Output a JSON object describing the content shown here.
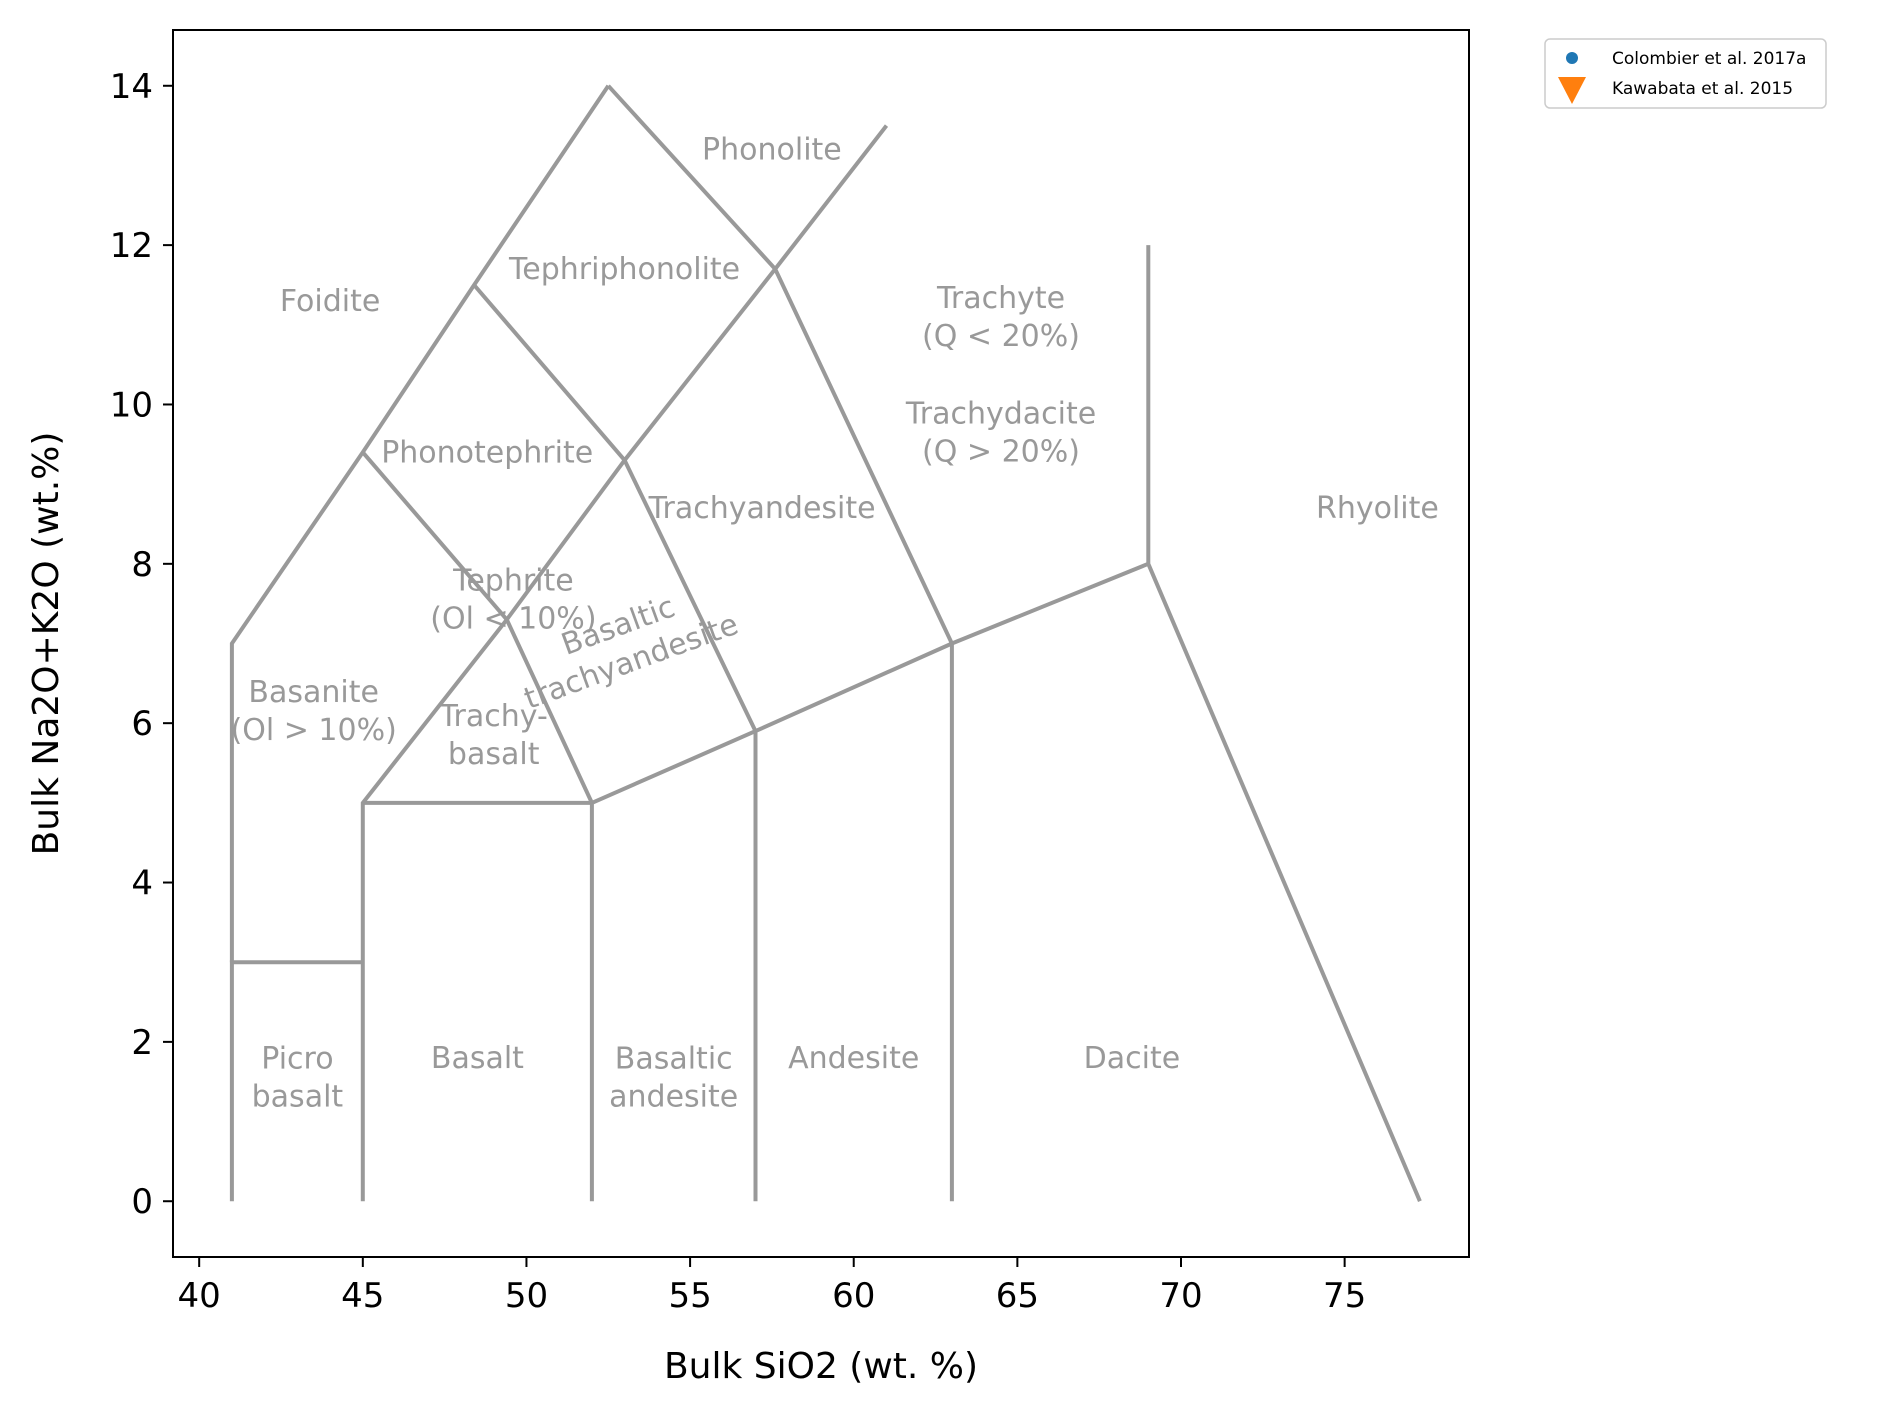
{
  "chart_data": {
    "type": "scatter",
    "title": "",
    "xlabel": "Bulk SiO2 (wt. %)",
    "ylabel": "Bulk Na2O+K2O (wt.%)",
    "xlim": [
      39.2,
      78.8
    ],
    "ylim": [
      -0.7,
      14.7
    ],
    "x_ticks": [
      40,
      45,
      50,
      55,
      60,
      65,
      70,
      75
    ],
    "y_ticks": [
      0,
      2,
      4,
      6,
      8,
      10,
      12,
      14
    ],
    "grid": false,
    "legend_position": "outside-top-right",
    "series": [
      {
        "name": "Colombier et al. 2017a",
        "marker": "circle",
        "color": "#1f77b4",
        "points": []
      },
      {
        "name": "Kawabata et al. 2015",
        "marker": "triangle-down",
        "color": "#ff7f0e",
        "points": []
      }
    ],
    "boundary_color": "#999999",
    "boundaries": [
      [
        [
          41,
          0
        ],
        [
          41,
          3
        ],
        [
          45,
          3
        ]
      ],
      [
        [
          45,
          0
        ],
        [
          45,
          3
        ],
        [
          45,
          5
        ],
        [
          49.4,
          7.3
        ],
        [
          53,
          9.3
        ],
        [
          57.6,
          11.7
        ],
        [
          61,
          13.5
        ]
      ],
      [
        [
          45,
          5
        ],
        [
          52,
          5
        ]
      ],
      [
        [
          52,
          0
        ],
        [
          52,
          5
        ],
        [
          57,
          5.9
        ],
        [
          63,
          7
        ],
        [
          69,
          8
        ]
      ],
      [
        [
          57,
          0
        ],
        [
          57,
          5.9
        ]
      ],
      [
        [
          63,
          0
        ],
        [
          63,
          7
        ]
      ],
      [
        [
          41,
          3
        ],
        [
          41,
          7
        ],
        [
          45,
          9.4
        ],
        [
          48.4,
          11.5
        ],
        [
          52.5,
          14
        ]
      ],
      [
        [
          45,
          9.4
        ],
        [
          49.4,
          7.3
        ],
        [
          52,
          5
        ]
      ],
      [
        [
          52.5,
          14
        ],
        [
          57.6,
          11.7
        ],
        [
          63,
          7
        ]
      ],
      [
        [
          48.4,
          11.5
        ],
        [
          53,
          9.3
        ],
        [
          57,
          5.9
        ]
      ],
      [
        [
          69,
          12
        ],
        [
          69,
          8
        ],
        [
          77.3,
          0
        ]
      ]
    ],
    "region_labels": [
      {
        "lines": [
          "Picro",
          "basalt"
        ],
        "x": 43,
        "y": 1.55,
        "rotation": 0
      },
      {
        "lines": [
          "Basalt"
        ],
        "x": 48.5,
        "y": 1.8,
        "rotation": 0
      },
      {
        "lines": [
          "Basaltic",
          "andesite"
        ],
        "x": 54.5,
        "y": 1.55,
        "rotation": 0
      },
      {
        "lines": [
          "Andesite"
        ],
        "x": 60,
        "y": 1.8,
        "rotation": 0
      },
      {
        "lines": [
          "Dacite"
        ],
        "x": 68.5,
        "y": 1.8,
        "rotation": 0
      },
      {
        "lines": [
          "Rhyolite"
        ],
        "x": 76,
        "y": 8.7,
        "rotation": 0
      },
      {
        "lines": [
          "Trachy-",
          "basalt"
        ],
        "x": 49,
        "y": 5.85,
        "rotation": 0
      },
      {
        "lines": [
          "Basaltic",
          "trachyandesite"
        ],
        "x": 53,
        "y": 7,
        "rotation": -20
      },
      {
        "lines": [
          "Trachyandesite"
        ],
        "x": 57.2,
        "y": 8.7,
        "rotation": 0
      },
      {
        "lines": [
          "Trachyte",
          "(Q < 20%)"
        ],
        "x": 64.5,
        "y": 11.1,
        "rotation": 0
      },
      {
        "lines": [
          "Trachydacite",
          "(Q > 20%)"
        ],
        "x": 64.5,
        "y": 9.65,
        "rotation": 0
      },
      {
        "lines": [
          "Tephrite",
          "(Ol < 10%)"
        ],
        "x": 49.6,
        "y": 7.55,
        "rotation": 0
      },
      {
        "lines": [
          "Basanite",
          "(Ol > 10%)"
        ],
        "x": 43.5,
        "y": 6.15,
        "rotation": 0
      },
      {
        "lines": [
          "Phonotephrite"
        ],
        "x": 48.8,
        "y": 9.4,
        "rotation": 0
      },
      {
        "lines": [
          "Tephriphonolite"
        ],
        "x": 53,
        "y": 11.7,
        "rotation": 0
      },
      {
        "lines": [
          "Phonolite"
        ],
        "x": 57.5,
        "y": 13.2,
        "rotation": 0
      },
      {
        "lines": [
          "Foidite"
        ],
        "x": 44,
        "y": 11.3,
        "rotation": 0
      }
    ]
  }
}
